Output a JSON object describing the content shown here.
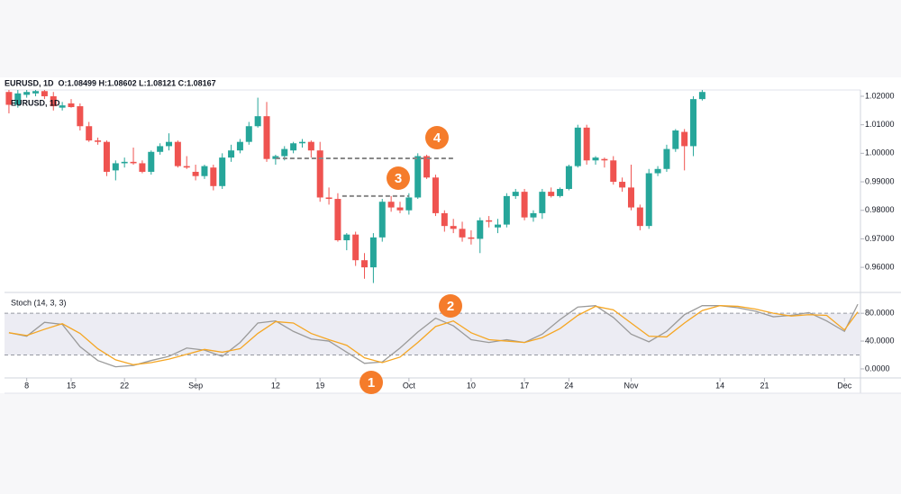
{
  "header": {
    "symbol": "EURUSD, 1D",
    "ohlc": "O:1.08499 H:1.08602 L:1.08121 C:1.08167"
  },
  "markers": [
    "1",
    "2",
    "3",
    "4"
  ],
  "chart_data": [
    {
      "type": "candlestick",
      "title": "EURUSD, 1D",
      "up_color": "#26a69a",
      "down_color": "#ef5350",
      "x": [
        0,
        1,
        2,
        3,
        4,
        5,
        6,
        7,
        8,
        9,
        10,
        11,
        12,
        13,
        14,
        15,
        16,
        17,
        18,
        19,
        20,
        21,
        22,
        23,
        24,
        25,
        26,
        27,
        28,
        29,
        30,
        31,
        32,
        33,
        34,
        35,
        36,
        37,
        38,
        39,
        40,
        41,
        42,
        43,
        44,
        45,
        46,
        47,
        48,
        49,
        50,
        51,
        52,
        53,
        54,
        55,
        56,
        57,
        58,
        59,
        60,
        61,
        62,
        63,
        64,
        65,
        66,
        67,
        68,
        69,
        70,
        71,
        72,
        73,
        74,
        75,
        76,
        77,
        78
      ],
      "open": [
        1.0215,
        1.017,
        1.0205,
        1.021,
        1.0218,
        1.02,
        1.016,
        1.0175,
        1.0165,
        1.0095,
        1.0045,
        1.004,
        0.994,
        0.9965,
        0.997,
        0.9965,
        0.9935,
        1.0005,
        1.0025,
        1.004,
        0.9955,
        0.9935,
        0.992,
        0.995,
        0.9885,
        0.9985,
        1.001,
        1.004,
        1.0095,
        1.013,
        0.998,
        0.999,
        1.001,
        1.0035,
        1.004,
        1.001,
        0.9845,
        0.984,
        0.9695,
        0.9715,
        0.9625,
        0.96,
        0.9705,
        0.983,
        0.981,
        0.98,
        0.9845,
        0.999,
        0.9915,
        0.979,
        0.9745,
        0.9735,
        0.9705,
        0.97,
        0.9765,
        0.974,
        0.975,
        0.985,
        0.9865,
        0.9775,
        0.979,
        0.9865,
        0.985,
        0.9875,
        0.9955,
        1.009,
        0.9975,
        0.998,
        0.9975,
        0.99,
        0.988,
        0.981,
        0.9745,
        0.993,
        0.9945,
        1.0015,
        1.0075,
        1.0025,
        1.019
      ],
      "high": [
        1.0222,
        1.0222,
        1.0222,
        1.0222,
        1.0222,
        1.0215,
        1.018,
        1.019,
        1.0175,
        1.011,
        1.0055,
        1.0045,
        0.9975,
        0.9985,
        1.002,
        0.9975,
        1.001,
        1.0035,
        1.007,
        1.0045,
        0.999,
        0.996,
        0.996,
        0.996,
        1.0,
        1.003,
        1.005,
        1.011,
        1.0195,
        1.018,
        0.9995,
        1.0025,
        1.004,
        1.005,
        1.0045,
        1.004,
        0.988,
        0.986,
        0.972,
        0.9725,
        0.965,
        0.972,
        0.984,
        0.985,
        0.983,
        0.986,
        1.0,
        0.9995,
        0.9925,
        0.98,
        0.977,
        0.976,
        0.973,
        0.9775,
        0.978,
        0.977,
        0.986,
        0.9875,
        0.9875,
        0.98,
        0.9875,
        0.988,
        0.988,
        0.996,
        1.01,
        1.01,
        0.999,
        0.9985,
        0.999,
        0.9915,
        0.996,
        0.982,
        0.9945,
        0.9955,
        1.003,
        1.0085,
        1.0085,
        1.02,
        1.0222
      ],
      "low": [
        1.014,
        1.016,
        1.0195,
        1.02,
        1.019,
        1.015,
        1.015,
        1.016,
        1.008,
        1.004,
        1.003,
        0.992,
        0.9905,
        0.995,
        0.996,
        0.993,
        0.9925,
        0.9995,
        1.001,
        0.995,
        0.9945,
        0.9905,
        0.991,
        0.987,
        0.9875,
        0.997,
        1.0,
        1.003,
        1.009,
        0.997,
        0.996,
        0.9975,
        1.0,
        1.002,
        0.9985,
        0.983,
        0.982,
        0.969,
        0.966,
        0.9605,
        0.956,
        0.9545,
        0.969,
        0.9795,
        0.979,
        0.9785,
        0.984,
        0.991,
        0.978,
        0.9725,
        0.972,
        0.969,
        0.968,
        0.965,
        0.974,
        0.972,
        0.974,
        0.984,
        0.9765,
        0.976,
        0.977,
        0.9845,
        0.9845,
        0.987,
        0.995,
        0.996,
        0.996,
        0.995,
        0.989,
        0.9865,
        0.98,
        0.973,
        0.9735,
        0.992,
        0.9935,
        1.0005,
        0.994,
        0.999,
        1.0185
      ],
      "close": [
        1.017,
        1.021,
        1.0215,
        1.0218,
        1.02,
        1.0165,
        1.0168,
        1.0162,
        1.0095,
        1.0045,
        1.004,
        0.9935,
        0.9965,
        0.997,
        0.9965,
        0.9935,
        1.0005,
        1.0025,
        1.004,
        0.9955,
        0.995,
        0.992,
        0.9955,
        0.9885,
        0.9985,
        1.001,
        1.004,
        1.0095,
        1.013,
        0.998,
        0.999,
        1.0015,
        1.0035,
        1.004,
        1.001,
        0.9845,
        0.984,
        0.9695,
        0.9715,
        0.9625,
        0.96,
        0.9705,
        0.983,
        0.981,
        0.98,
        0.9845,
        0.999,
        0.9915,
        0.979,
        0.9745,
        0.9735,
        0.9705,
        0.97,
        0.9765,
        0.976,
        0.975,
        0.985,
        0.9865,
        0.9775,
        0.979,
        0.9865,
        0.985,
        0.9875,
        0.9955,
        1.009,
        0.9975,
        0.9985,
        0.9975,
        0.99,
        0.988,
        0.981,
        0.9745,
        0.993,
        0.9945,
        1.0015,
        1.008,
        1.0025,
        1.019,
        1.0215
      ],
      "levels": [
        {
          "y": 0.9982,
          "x": [
            30,
            50
          ]
        },
        {
          "y": 0.985,
          "x": [
            37.5,
            45
          ]
        }
      ],
      "level_color": "#888888",
      "xlim": [
        -0.5,
        95.8
      ],
      "ylim": [
        0.9512,
        1.0222
      ],
      "yticks": [
        {
          "value": 1.02,
          "label": "1.02000"
        },
        {
          "value": 1.01,
          "label": "1.01000"
        },
        {
          "value": 1.0,
          "label": "1.00000"
        },
        {
          "value": 0.99,
          "label": "0.99000"
        },
        {
          "value": 0.98,
          "label": "0.98000"
        },
        {
          "value": 0.97,
          "label": "0.97000"
        },
        {
          "value": 0.96,
          "label": "0.96000"
        }
      ]
    },
    {
      "type": "line",
      "title": "Stoch (14, 3, 3)",
      "x": [
        0,
        2,
        4,
        6,
        8,
        10,
        12,
        14,
        16,
        18,
        20,
        22,
        24,
        26,
        28,
        30,
        32,
        34,
        36,
        38,
        40,
        42,
        44,
        46,
        48,
        50,
        52,
        54,
        56,
        58,
        60,
        62,
        64,
        66,
        68,
        70,
        72,
        74,
        76,
        78,
        80,
        82,
        84,
        86,
        88,
        90,
        92,
        94,
        95.5
      ],
      "series": [
        {
          "color": "#9a9a9a",
          "values": [
            52,
            47,
            67,
            64,
            32,
            12,
            3,
            5,
            12,
            18,
            30,
            27,
            18,
            38,
            66,
            69,
            54,
            43,
            40,
            24,
            8,
            10,
            30,
            53,
            73,
            62,
            42,
            38,
            42,
            38,
            50,
            71,
            89,
            91,
            74,
            50,
            39,
            54,
            78,
            91,
            91,
            88,
            83,
            75,
            77,
            81,
            69,
            54,
            93
          ]
        },
        {
          "color": "#f5a623",
          "values": [
            52,
            48,
            57,
            65,
            51,
            29,
            13,
            6,
            9,
            14,
            21,
            28,
            24,
            29,
            51,
            68,
            66,
            51,
            42,
            34,
            16,
            9,
            17,
            38,
            61,
            69,
            52,
            42,
            40,
            38,
            45,
            58,
            77,
            90,
            85,
            66,
            47,
            46,
            66,
            84,
            91,
            90,
            86,
            80,
            76,
            78,
            77,
            56,
            82
          ]
        }
      ],
      "band": [
        20,
        80
      ],
      "band_color": "#ececf3",
      "xlim": [
        -0.5,
        95.8
      ],
      "ylim": [
        -13,
        110
      ],
      "yticks": [
        {
          "value": 80,
          "label": "80.0000"
        },
        {
          "value": 40,
          "label": "40.0000"
        },
        {
          "value": 0,
          "label": "0.0000"
        }
      ],
      "xticks": [
        {
          "value": 2,
          "label": "8"
        },
        {
          "value": 7,
          "label": "15"
        },
        {
          "value": 13,
          "label": "22"
        },
        {
          "value": 21,
          "label": "Sep"
        },
        {
          "value": 30,
          "label": "12"
        },
        {
          "value": 35,
          "label": "19"
        },
        {
          "value": 45,
          "label": "Oct"
        },
        {
          "value": 52,
          "label": "10"
        },
        {
          "value": 58,
          "label": "17"
        },
        {
          "value": 63,
          "label": "24"
        },
        {
          "value": 70,
          "label": "Nov"
        },
        {
          "value": 80,
          "label": "14"
        },
        {
          "value": 85,
          "label": "21"
        },
        {
          "value": 94,
          "label": "Dec"
        }
      ]
    }
  ]
}
